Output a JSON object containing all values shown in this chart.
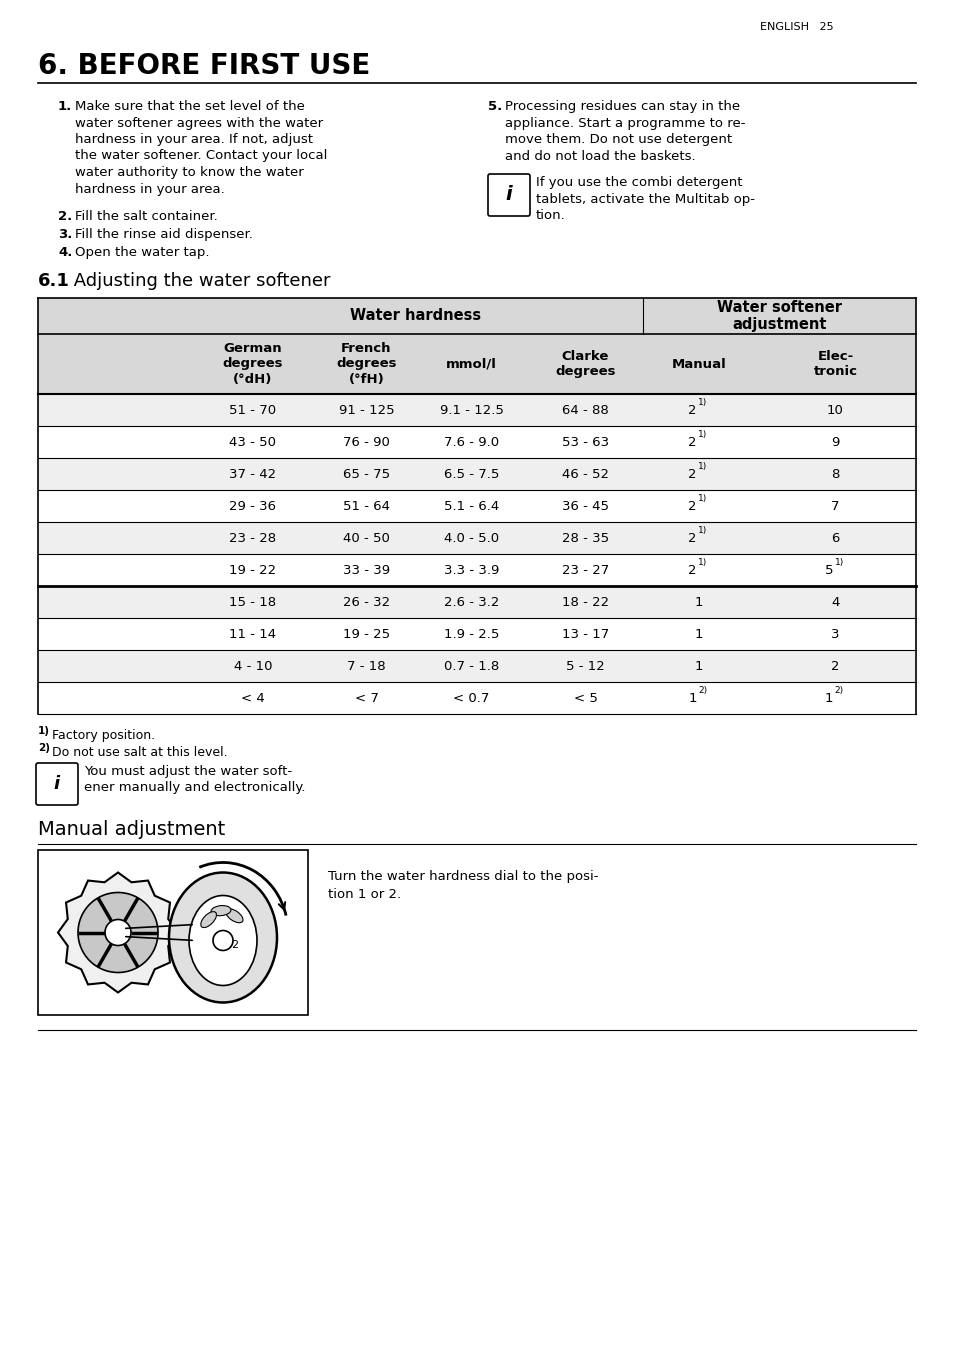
{
  "page_header": "ENGLISH   25",
  "section_title": "6. BEFORE FIRST USE",
  "bg_color": "#ffffff",
  "text_color": "#000000",
  "table_gray": "#d8d8d8",
  "row_gray": "#efefef",
  "thick_border_after_row": 5,
  "col_headers": [
    "German\ndegrees\n(°dH)",
    "French\ndegrees\n(°fH)",
    "mmol/l",
    "Clarke\ndegrees",
    "Manual",
    "Elec-\ntronic"
  ],
  "table_rows": [
    [
      "51 - 70",
      "91 - 125",
      "9.1 - 12.5",
      "64 - 88",
      "2|1)",
      "10"
    ],
    [
      "43 - 50",
      "76 - 90",
      "7.6 - 9.0",
      "53 - 63",
      "2|1)",
      "9"
    ],
    [
      "37 - 42",
      "65 - 75",
      "6.5 - 7.5",
      "46 - 52",
      "2|1)",
      "8"
    ],
    [
      "29 - 36",
      "51 - 64",
      "5.1 - 6.4",
      "36 - 45",
      "2|1)",
      "7"
    ],
    [
      "23 - 28",
      "40 - 50",
      "4.0 - 5.0",
      "28 - 35",
      "2|1)",
      "6"
    ],
    [
      "19 - 22",
      "33 - 39",
      "3.3 - 3.9",
      "23 - 27",
      "2|1)",
      "5|1)"
    ],
    [
      "15 - 18",
      "26 - 32",
      "2.6 - 3.2",
      "18 - 22",
      "1",
      "4"
    ],
    [
      "11 - 14",
      "19 - 25",
      "1.9 - 2.5",
      "13 - 17",
      "1",
      "3"
    ],
    [
      "4 - 10",
      "7 - 18",
      "0.7 - 1.8",
      "5 - 12",
      "1",
      "2"
    ],
    [
      "< 4",
      "< 7",
      "< 0.7",
      "< 5",
      "1|2)",
      "1|2)"
    ]
  ]
}
